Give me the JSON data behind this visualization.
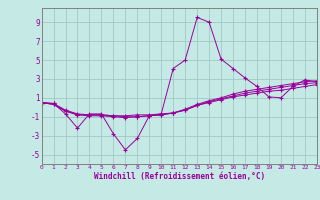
{
  "background_color": "#c5eae6",
  "grid_color": "#a0c8c2",
  "line_color": "#990099",
  "xlabel": "Windchill (Refroidissement éolien,°C)",
  "xlim": [
    0,
    23
  ],
  "ylim": [
    -6,
    10.5
  ],
  "xticks": [
    0,
    1,
    2,
    3,
    4,
    5,
    6,
    7,
    8,
    9,
    10,
    11,
    12,
    13,
    14,
    15,
    16,
    17,
    18,
    19,
    20,
    21,
    22,
    23
  ],
  "yticks": [
    -5,
    -3,
    -1,
    1,
    3,
    5,
    7,
    9
  ],
  "series": [
    [
      0.5,
      0.4,
      -0.7,
      -2.2,
      -0.7,
      -0.7,
      -2.8,
      -4.5,
      -3.3,
      -0.9,
      -0.7,
      4.1,
      5.0,
      9.5,
      9.0,
      5.1,
      4.1,
      3.1,
      2.2,
      1.1,
      1.0,
      2.2,
      2.9,
      2.7
    ],
    [
      0.5,
      0.3,
      -0.4,
      -0.8,
      -0.8,
      -0.8,
      -0.9,
      -0.9,
      -0.8,
      -0.8,
      -0.7,
      -0.6,
      -0.3,
      0.2,
      0.5,
      0.8,
      1.1,
      1.3,
      1.5,
      1.7,
      1.8,
      2.0,
      2.2,
      2.4
    ],
    [
      0.5,
      0.3,
      -0.4,
      -0.8,
      -0.9,
      -0.9,
      -1.0,
      -1.1,
      -1.0,
      -0.9,
      -0.8,
      -0.6,
      -0.3,
      0.2,
      0.6,
      0.9,
      1.2,
      1.5,
      1.7,
      1.9,
      2.1,
      2.3,
      2.5,
      2.6
    ],
    [
      0.5,
      0.4,
      -0.3,
      -0.7,
      -0.8,
      -0.8,
      -0.9,
      -1.0,
      -1.0,
      -0.9,
      -0.8,
      -0.6,
      -0.2,
      0.3,
      0.7,
      1.0,
      1.4,
      1.7,
      1.9,
      2.1,
      2.3,
      2.5,
      2.7,
      2.8
    ]
  ]
}
